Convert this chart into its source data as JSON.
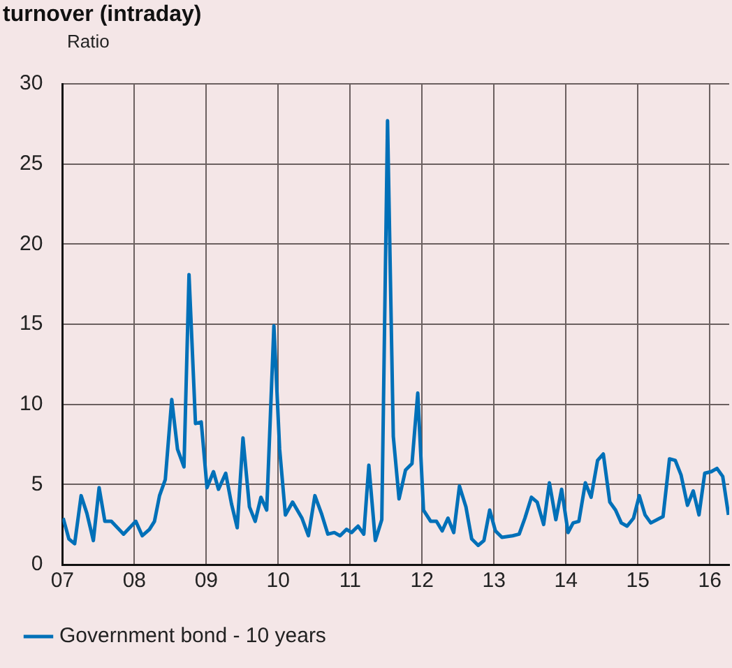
{
  "chart_data": {
    "type": "line",
    "title": "turnover (intraday)",
    "ylabel": "Ratio",
    "series": [
      {
        "name": "Government bond - 10 years",
        "color": "#0070b8",
        "x": [
          2007.01,
          2007.09,
          2007.17,
          2007.26,
          2007.34,
          2007.43,
          2007.51,
          2007.59,
          2007.68,
          2007.85,
          2008.02,
          2008.11,
          2008.21,
          2008.28,
          2008.35,
          2008.43,
          2008.52,
          2008.6,
          2008.69,
          2008.76,
          2008.85,
          2008.93,
          2009.01,
          2009.1,
          2009.17,
          2009.27,
          2009.35,
          2009.43,
          2009.51,
          2009.6,
          2009.68,
          2009.76,
          2009.84,
          2009.94,
          2010.02,
          2010.1,
          2010.2,
          2010.33,
          2010.42,
          2010.51,
          2010.6,
          2010.69,
          2010.78,
          2010.86,
          2010.95,
          2011.02,
          2011.11,
          2011.19,
          2011.26,
          2011.35,
          2011.44,
          2011.52,
          2011.6,
          2011.68,
          2011.77,
          2011.86,
          2011.94,
          2012.02,
          2012.12,
          2012.2,
          2012.28,
          2012.36,
          2012.44,
          2012.52,
          2012.61,
          2012.69,
          2012.78,
          2012.86,
          2012.94,
          2013.02,
          2013.11,
          2013.26,
          2013.35,
          2013.43,
          2013.52,
          2013.6,
          2013.69,
          2013.77,
          2013.86,
          2013.94,
          2014.03,
          2014.1,
          2014.18,
          2014.27,
          2014.35,
          2014.44,
          2014.52,
          2014.61,
          2014.69,
          2014.77,
          2014.85,
          2014.94,
          2015.02,
          2015.1,
          2015.18,
          2015.35,
          2015.44,
          2015.52,
          2015.6,
          2015.69,
          2015.77,
          2015.85,
          2015.93,
          2016.02,
          2016.1,
          2016.18,
          2016.26
        ],
        "values": [
          2.9,
          1.6,
          1.3,
          4.3,
          3.2,
          1.5,
          4.8,
          2.7,
          2.7,
          1.9,
          2.7,
          1.8,
          2.2,
          2.7,
          4.3,
          5.3,
          10.3,
          7.2,
          6.1,
          18.1,
          8.8,
          8.9,
          4.8,
          5.8,
          4.7,
          5.7,
          3.8,
          2.3,
          7.9,
          3.6,
          2.7,
          4.2,
          3.4,
          14.9,
          7.2,
          3.1,
          3.9,
          2.9,
          1.8,
          4.3,
          3.2,
          1.9,
          2.0,
          1.8,
          2.2,
          2.0,
          2.4,
          1.9,
          6.2,
          1.5,
          2.8,
          27.7,
          8.0,
          4.1,
          5.9,
          6.3,
          10.7,
          3.4,
          2.7,
          2.7,
          2.1,
          2.9,
          2.0,
          4.9,
          3.6,
          1.6,
          1.2,
          1.5,
          3.4,
          2.1,
          1.7,
          1.8,
          1.9,
          2.9,
          4.2,
          3.9,
          2.5,
          5.1,
          2.8,
          4.7,
          2.0,
          2.6,
          2.7,
          5.1,
          4.2,
          6.5,
          6.9,
          3.9,
          3.4,
          2.6,
          2.4,
          2.9,
          4.3,
          3.1,
          2.6,
          3.0,
          6.6,
          6.5,
          5.6,
          3.7,
          4.6,
          3.1,
          5.7,
          5.8,
          6.0,
          5.5,
          3.1
        ]
      }
    ],
    "xlim": [
      2007,
      2016.27
    ],
    "xticks": [
      {
        "value": 2007,
        "label": "07"
      },
      {
        "value": 2008,
        "label": "08"
      },
      {
        "value": 2009,
        "label": "09"
      },
      {
        "value": 2010,
        "label": "10"
      },
      {
        "value": 2011,
        "label": "11"
      },
      {
        "value": 2012,
        "label": "12"
      },
      {
        "value": 2013,
        "label": "13"
      },
      {
        "value": 2014,
        "label": "14"
      },
      {
        "value": 2015,
        "label": "15"
      },
      {
        "value": 2016,
        "label": "16"
      }
    ],
    "ylim": [
      0,
      30
    ],
    "yticks": [
      0,
      5,
      10,
      15,
      20,
      25,
      30
    ],
    "grid": true,
    "legend": "bottom",
    "marker": "none",
    "line_style": "solid"
  }
}
